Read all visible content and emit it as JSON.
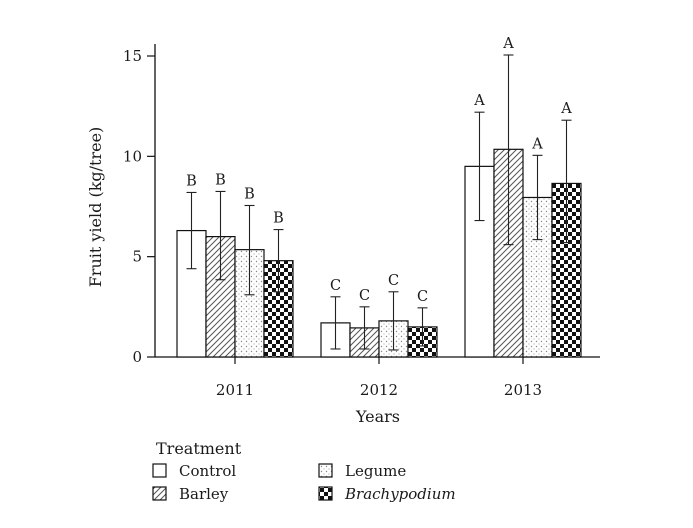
{
  "chart_data": {
    "type": "bar",
    "xlabel": "Years",
    "ylabel": "Fruit yield (kg/tree)",
    "ylim": [
      0,
      15
    ],
    "yticks": [
      0,
      5,
      10,
      15
    ],
    "categories": [
      "2011",
      "2012",
      "2013"
    ],
    "legend": {
      "title": "Treatment",
      "placement": "bottom-left"
    },
    "series": [
      {
        "name": "Control",
        "pattern": "plain",
        "values": [
          6.3,
          1.7,
          9.5
        ],
        "err_low": [
          4.4,
          0.4,
          6.8
        ],
        "err_high": [
          8.2,
          3.0,
          12.2
        ],
        "labels": [
          "B",
          "C",
          "A"
        ]
      },
      {
        "name": "Barley",
        "pattern": "hatch",
        "values": [
          6.0,
          1.45,
          10.35
        ],
        "err_low": [
          3.85,
          0.4,
          5.6
        ],
        "err_high": [
          8.25,
          2.5,
          15.05
        ],
        "labels": [
          "B",
          "C",
          "A"
        ]
      },
      {
        "name": "Legume",
        "pattern": "dots",
        "values": [
          5.35,
          1.8,
          7.95
        ],
        "err_low": [
          3.1,
          0.35,
          5.85
        ],
        "err_high": [
          7.55,
          3.25,
          10.05
        ],
        "labels": [
          "B",
          "C",
          "A"
        ]
      },
      {
        "name": "Brachypodium",
        "pattern": "checker",
        "values": [
          4.8,
          1.5,
          8.65
        ],
        "err_low": [
          3.25,
          0.55,
          5.7
        ],
        "err_high": [
          6.35,
          2.45,
          11.8
        ],
        "labels": [
          "B",
          "C",
          "A"
        ]
      }
    ]
  }
}
